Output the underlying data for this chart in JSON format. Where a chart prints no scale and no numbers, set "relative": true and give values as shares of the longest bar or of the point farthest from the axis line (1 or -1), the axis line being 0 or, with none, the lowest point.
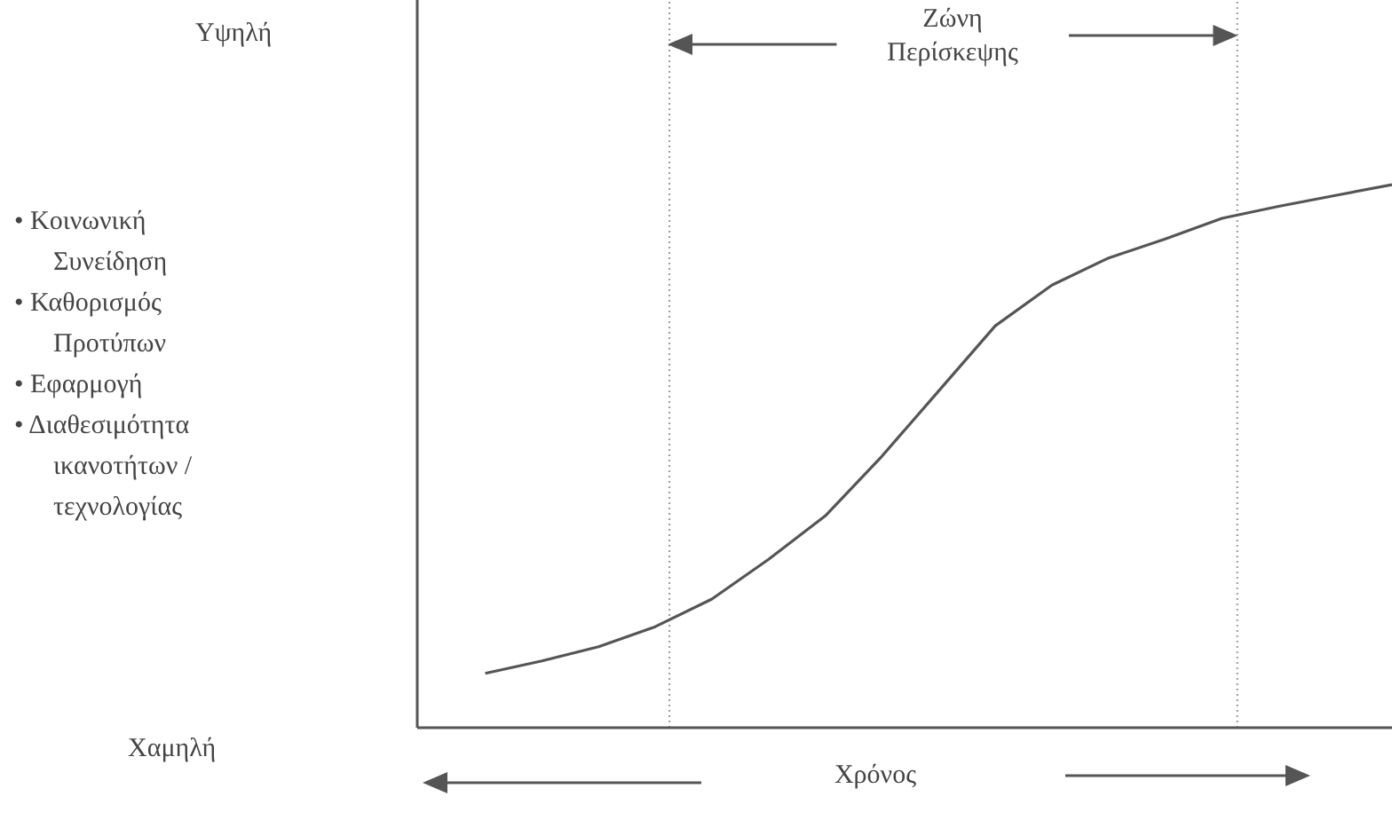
{
  "chart_data": {
    "type": "line",
    "relative": true,
    "xlabel": "Χρόνος",
    "categories": [
      null,
      null,
      null,
      null,
      null,
      null,
      null,
      null,
      null,
      null,
      null,
      null,
      null,
      null,
      null,
      null,
      null
    ],
    "series": [
      {
        "color": "#555555",
        "values": [
          0.1,
          0.123,
          0.149,
          0.186,
          0.237,
          0.31,
          0.39,
          0.5,
          0.62,
          0.74,
          0.815,
          0.865,
          0.9,
          0.938,
          0.96,
          0.98,
          1
        ]
      }
    ],
    "annotations": [
      "Ζώνη Περίσκεψης",
      "Υψηλή",
      "Χαμηλή",
      "• Κοινωνική Συνείδηση",
      "• Καθορισμός Προτύπων",
      "• Εφαρμογή",
      "• Διαθεσιμότητα ικανοτήτων / τεχνολογίας"
    ],
    "grid": false,
    "legend": false,
    "marker": "none",
    "line_style": "solid"
  }
}
